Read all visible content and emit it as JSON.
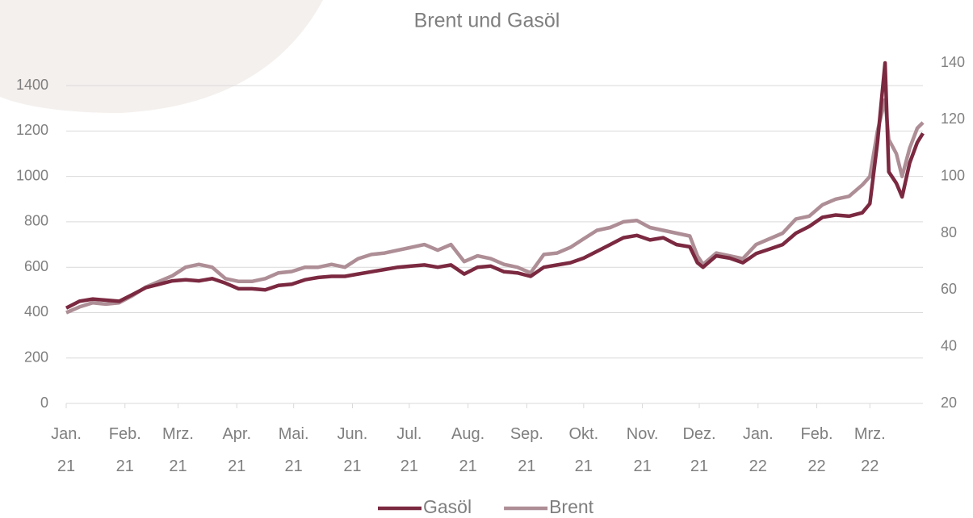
{
  "chart_data": {
    "type": "line",
    "title": "Brent und Gasöl",
    "x": [
      0,
      7,
      14,
      21,
      28,
      35,
      42,
      49,
      56,
      63,
      70,
      77,
      84,
      91,
      98,
      105,
      112,
      119,
      126,
      133,
      140,
      147,
      154,
      161,
      168,
      175,
      182,
      189,
      196,
      203,
      210,
      217,
      224,
      231,
      238,
      245,
      252,
      259,
      266,
      273,
      280,
      287,
      294,
      301,
      308,
      315,
      322,
      329,
      333,
      336,
      343,
      350,
      357,
      364,
      371,
      378,
      385,
      392,
      399,
      406,
      413,
      420,
      424,
      428,
      432,
      434,
      438,
      441,
      445,
      449,
      452
    ],
    "xlim": [
      0,
      452
    ],
    "xticks": [
      {
        "value": 0,
        "label": "Jan. 21"
      },
      {
        "value": 31,
        "label": "Feb. 21"
      },
      {
        "value": 59,
        "label": "Mrz. 21"
      },
      {
        "value": 90,
        "label": "Apr. 21"
      },
      {
        "value": 120,
        "label": "Mai. 21"
      },
      {
        "value": 151,
        "label": "Jun. 21"
      },
      {
        "value": 181,
        "label": "Jul. 21"
      },
      {
        "value": 212,
        "label": "Aug. 21"
      },
      {
        "value": 243,
        "label": "Sep. 21"
      },
      {
        "value": 273,
        "label": "Okt. 21"
      },
      {
        "value": 304,
        "label": "Nov. 21"
      },
      {
        "value": 334,
        "label": "Dez. 21"
      },
      {
        "value": 365,
        "label": "Jan. 22"
      },
      {
        "value": 396,
        "label": "Feb. 22"
      },
      {
        "value": 424,
        "label": "Mrz. 22"
      }
    ],
    "ylim": [
      0,
      1500
    ],
    "yticks": [
      0,
      200,
      400,
      600,
      800,
      1000,
      1200,
      1400
    ],
    "y2lim": [
      20,
      140
    ],
    "y2ticks": [
      20,
      40,
      60,
      80,
      100,
      120,
      140
    ],
    "grid": true,
    "legend": "bottom",
    "series": [
      {
        "name": "Gasöl",
        "color": "#7b2941",
        "axis": "y",
        "values": [
          420,
          450,
          460,
          455,
          450,
          480,
          510,
          525,
          540,
          545,
          540,
          550,
          530,
          505,
          505,
          500,
          520,
          525,
          545,
          555,
          560,
          560,
          570,
          580,
          590,
          600,
          605,
          610,
          600,
          610,
          570,
          600,
          605,
          580,
          575,
          560,
          600,
          610,
          620,
          640,
          670,
          700,
          730,
          740,
          720,
          730,
          700,
          690,
          620,
          600,
          650,
          640,
          620,
          660,
          680,
          700,
          750,
          780,
          820,
          830,
          825,
          840,
          880,
          1150,
          1500,
          1020,
          970,
          910,
          1060,
          1150,
          1190
        ]
      },
      {
        "name": "Brent",
        "color": "#ae8e96",
        "axis": "y2",
        "values": [
          52,
          54,
          55.5,
          55,
          55.5,
          58,
          61,
          63,
          65,
          68,
          69,
          68,
          64,
          63,
          63,
          64,
          66,
          66.5,
          68,
          68,
          69,
          68,
          71,
          72.5,
          73,
          74,
          75,
          76,
          74,
          76,
          70,
          72,
          71,
          69,
          68,
          66,
          72.5,
          73,
          75,
          78,
          81,
          82,
          84,
          84.5,
          82,
          81,
          80,
          79,
          72,
          69,
          73,
          72,
          71,
          76,
          78,
          80,
          85,
          86,
          90,
          92,
          93,
          97,
          100,
          116,
          127,
          113,
          108,
          100,
          110,
          117,
          119
        ]
      }
    ]
  }
}
